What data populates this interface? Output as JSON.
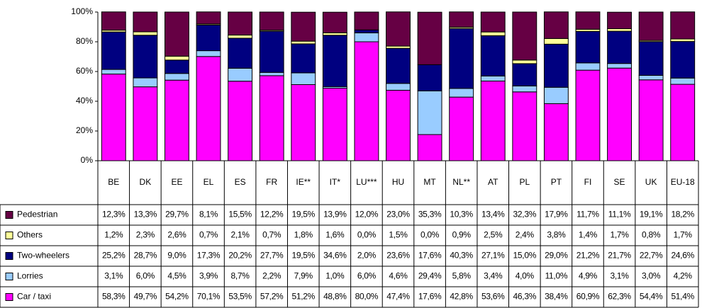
{
  "chart_data": {
    "type": "stacked_bar",
    "categories": [
      "BE",
      "DK",
      "EE",
      "EL",
      "ES",
      "FR",
      "IE**",
      "IT*",
      "LU***",
      "HU",
      "MT",
      "NL**",
      "AT",
      "PL",
      "PT",
      "FI",
      "SE",
      "UK",
      "EU-18"
    ],
    "series": [
      {
        "name": "Car / taxi",
        "color": "#ff00ff",
        "values": [
          58.3,
          49.7,
          54.2,
          70.1,
          53.5,
          57.2,
          51.2,
          48.8,
          80.0,
          47.4,
          17.6,
          42.8,
          53.6,
          46.3,
          38.4,
          60.9,
          62.3,
          54.4,
          51.4
        ],
        "value_labels": [
          "58,3%",
          "49,7%",
          "54,2%",
          "70,1%",
          "53,5%",
          "57,2%",
          "51,2%",
          "48,8%",
          "80,0%",
          "47,4%",
          "17,6%",
          "42,8%",
          "53,6%",
          "46,3%",
          "38,4%",
          "60,9%",
          "62,3%",
          "54,4%",
          "51,4%"
        ]
      },
      {
        "name": "Lorries",
        "color": "#99ccff",
        "values": [
          3.1,
          6.0,
          4.5,
          3.9,
          8.7,
          2.2,
          7.9,
          1.0,
          6.0,
          4.6,
          29.4,
          5.8,
          3.4,
          4.0,
          11.0,
          4.9,
          3.1,
          3.0,
          4.2
        ],
        "value_labels": [
          "3,1%",
          "6,0%",
          "4,5%",
          "3,9%",
          "8,7%",
          "2,2%",
          "7,9%",
          "1,0%",
          "6,0%",
          "4,6%",
          "29,4%",
          "5,8%",
          "3,4%",
          "4,0%",
          "11,0%",
          "4,9%",
          "3,1%",
          "3,0%",
          "4,2%"
        ]
      },
      {
        "name": "Two-wheelers",
        "color": "#000080",
        "values": [
          25.2,
          28.7,
          9.0,
          17.3,
          20.2,
          27.7,
          19.5,
          34.6,
          2.0,
          23.6,
          17.6,
          40.3,
          27.1,
          15.0,
          29.0,
          21.2,
          21.7,
          22.7,
          24.6
        ],
        "value_labels": [
          "25,2%",
          "28,7%",
          "9,0%",
          "17,3%",
          "20,2%",
          "27,7%",
          "19,5%",
          "34,6%",
          "2,0%",
          "23,6%",
          "17,6%",
          "40,3%",
          "27,1%",
          "15,0%",
          "29,0%",
          "21,2%",
          "21,7%",
          "22,7%",
          "24,6%"
        ]
      },
      {
        "name": "Others",
        "color": "#ffff99",
        "values": [
          1.2,
          2.3,
          2.6,
          0.7,
          2.1,
          0.7,
          1.8,
          1.6,
          0.0,
          1.5,
          0.0,
          0.9,
          2.5,
          2.4,
          3.8,
          1.4,
          1.7,
          0.8,
          1.7
        ],
        "value_labels": [
          "1,2%",
          "2,3%",
          "2,6%",
          "0,7%",
          "2,1%",
          "0,7%",
          "1,8%",
          "1,6%",
          "0,0%",
          "1,5%",
          "0,0%",
          "0,9%",
          "2,5%",
          "2,4%",
          "3,8%",
          "1,4%",
          "1,7%",
          "0,8%",
          "1,7%"
        ]
      },
      {
        "name": "Pedestrian",
        "color": "#660044",
        "values": [
          12.3,
          13.3,
          29.7,
          8.1,
          15.5,
          12.2,
          19.5,
          13.9,
          12.0,
          23.0,
          35.3,
          10.3,
          13.4,
          32.3,
          17.9,
          11.7,
          11.1,
          19.1,
          18.2
        ],
        "value_labels": [
          "12,3%",
          "13,3%",
          "29,7%",
          "8,1%",
          "15,5%",
          "12,2%",
          "19,5%",
          "13,9%",
          "12,0%",
          "23,0%",
          "35,3%",
          "10,3%",
          "13,4%",
          "32,3%",
          "17,9%",
          "11,7%",
          "11,1%",
          "19,1%",
          "18,2%"
        ]
      }
    ],
    "ylim": [
      0,
      100
    ],
    "yticks": [
      {
        "value": 0,
        "label": "0%"
      },
      {
        "value": 20,
        "label": "20%"
      },
      {
        "value": 40,
        "label": "40%"
      },
      {
        "value": 60,
        "label": "60%"
      },
      {
        "value": 80,
        "label": "80%"
      },
      {
        "value": 100,
        "label": "100%"
      }
    ]
  }
}
